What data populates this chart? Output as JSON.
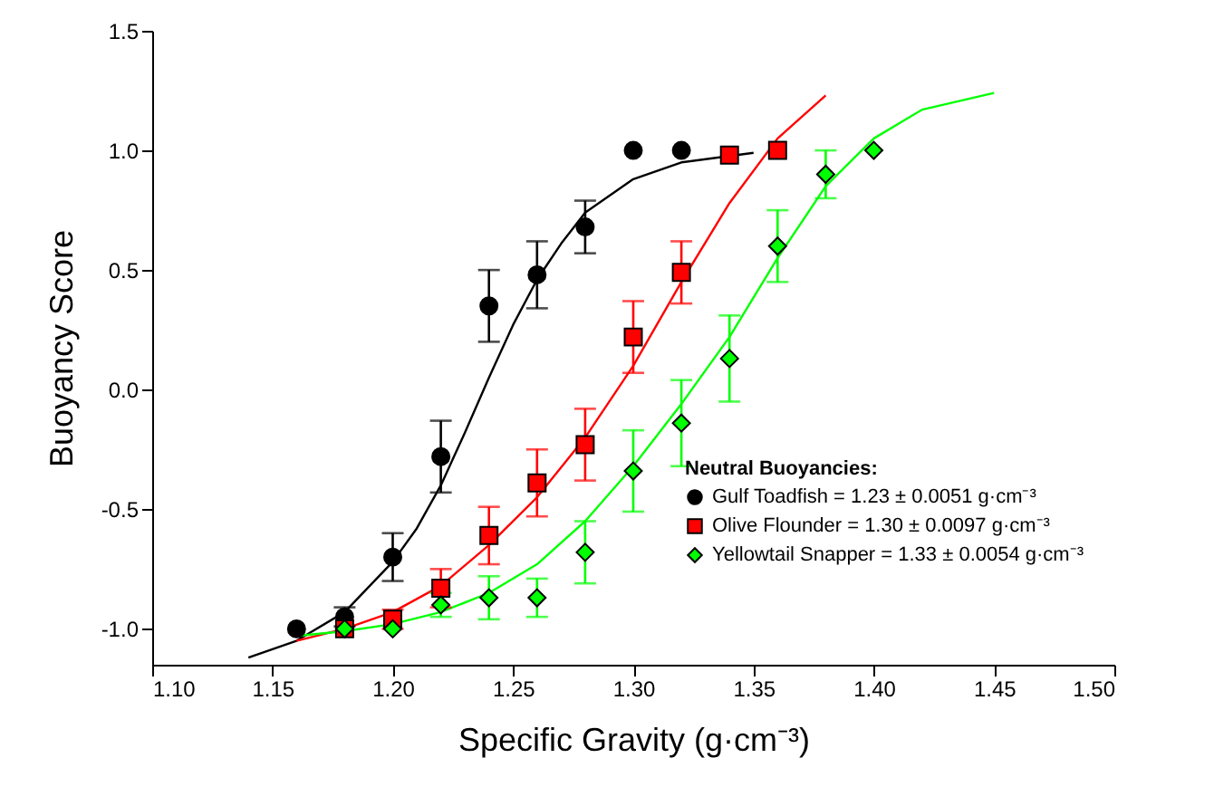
{
  "chart_data": {
    "type": "scatter",
    "xlabel": "Specific Gravity (g·cm⁻³)",
    "ylabel": "Buoyancy Score",
    "legend_title": "Neutral Buoyancies:",
    "legend": "bottom right",
    "grid": false,
    "xlim": [
      1.1,
      1.5
    ],
    "xticks": [
      {
        "value": 1.1,
        "label": "1.10"
      },
      {
        "value": 1.15,
        "label": "1.15"
      },
      {
        "value": 1.2,
        "label": "1.20"
      },
      {
        "value": 1.25,
        "label": "1.25"
      },
      {
        "value": 1.3,
        "label": "1.30"
      },
      {
        "value": 1.35,
        "label": "1.35"
      },
      {
        "value": 1.4,
        "label": "1.40"
      },
      {
        "value": 1.45,
        "label": "1.45"
      },
      {
        "value": 1.5,
        "label": "1.50"
      }
    ],
    "ylim": [
      -1.15,
      1.5
    ],
    "yticks": [
      {
        "value": -1.0,
        "label": "-1.0"
      },
      {
        "value": -0.5,
        "label": "-0.5"
      },
      {
        "value": 0.0,
        "label": "0.0"
      },
      {
        "value": 0.5,
        "label": "0.5"
      },
      {
        "value": 1.0,
        "label": "1.0"
      },
      {
        "value": 1.5,
        "label": "1.5"
      }
    ],
    "series": [
      {
        "marker": "circle",
        "name": "Gulf Toadfish = 1.23 ± 0.0051 g·cm⁻³",
        "color": "#000000",
        "x": [
          1.16,
          1.18,
          1.2,
          1.22,
          1.24,
          1.26,
          1.28,
          1.3,
          1.32
        ],
        "values": [
          -1.0,
          -0.95,
          -0.7,
          -0.28,
          0.35,
          0.48,
          0.68,
          1.0,
          1.0
        ],
        "errors": [
          null,
          0.04,
          0.1,
          0.15,
          0.15,
          0.14,
          0.11,
          null,
          null
        ]
      },
      {
        "marker": "square",
        "name": "Olive Flounder = 1.30 ± 0.0097 g·cm⁻³",
        "color": "#ff0000",
        "x": [
          1.18,
          1.2,
          1.22,
          1.24,
          1.26,
          1.28,
          1.3,
          1.32,
          1.34,
          1.36
        ],
        "values": [
          -1.0,
          -0.96,
          -0.83,
          -0.61,
          -0.39,
          -0.23,
          0.22,
          0.49,
          0.98,
          1.0
        ],
        "errors": [
          null,
          0.04,
          0.08,
          0.12,
          0.14,
          0.15,
          0.15,
          0.13,
          null,
          null
        ]
      },
      {
        "marker": "diamond",
        "name": "Yellowtail Snapper = 1.33 ± 0.0054 g·cm⁻³",
        "color": "#00ff00",
        "x": [
          1.18,
          1.2,
          1.22,
          1.24,
          1.26,
          1.28,
          1.3,
          1.32,
          1.34,
          1.36,
          1.38,
          1.4
        ],
        "values": [
          -1.0,
          -1.0,
          -0.9,
          -0.87,
          -0.87,
          -0.68,
          -0.34,
          -0.14,
          0.13,
          0.6,
          0.9,
          1.0
        ],
        "errors": [
          null,
          null,
          0.05,
          0.09,
          0.08,
          0.13,
          0.17,
          0.18,
          0.18,
          0.15,
          0.1,
          null
        ]
      },
      {
        "type": "line",
        "line_style": "solid",
        "color": "#000000",
        "x": [
          1.14,
          1.16,
          1.18,
          1.2,
          1.21,
          1.22,
          1.23,
          1.24,
          1.25,
          1.26,
          1.27,
          1.28,
          1.3,
          1.32,
          1.35
        ],
        "values": [
          -1.12,
          -1.05,
          -0.93,
          -0.72,
          -0.58,
          -0.4,
          -0.18,
          0.05,
          0.27,
          0.46,
          0.61,
          0.74,
          0.88,
          0.95,
          0.99
        ]
      },
      {
        "type": "line",
        "line_style": "solid",
        "color": "#ff0000",
        "x": [
          1.16,
          1.18,
          1.2,
          1.22,
          1.24,
          1.26,
          1.28,
          1.3,
          1.32,
          1.34,
          1.36,
          1.38
        ],
        "values": [
          -1.05,
          -1.0,
          -0.93,
          -0.82,
          -0.65,
          -0.45,
          -0.2,
          0.1,
          0.45,
          0.78,
          1.05,
          1.23
        ]
      },
      {
        "type": "line",
        "line_style": "solid",
        "color": "#00ff00",
        "x": [
          1.16,
          1.18,
          1.2,
          1.22,
          1.24,
          1.26,
          1.28,
          1.3,
          1.32,
          1.34,
          1.36,
          1.38,
          1.4,
          1.42,
          1.45
        ],
        "values": [
          -1.03,
          -1.01,
          -0.98,
          -0.93,
          -0.85,
          -0.73,
          -0.55,
          -0.32,
          -0.06,
          0.22,
          0.55,
          0.85,
          1.05,
          1.17,
          1.24
        ]
      }
    ]
  }
}
